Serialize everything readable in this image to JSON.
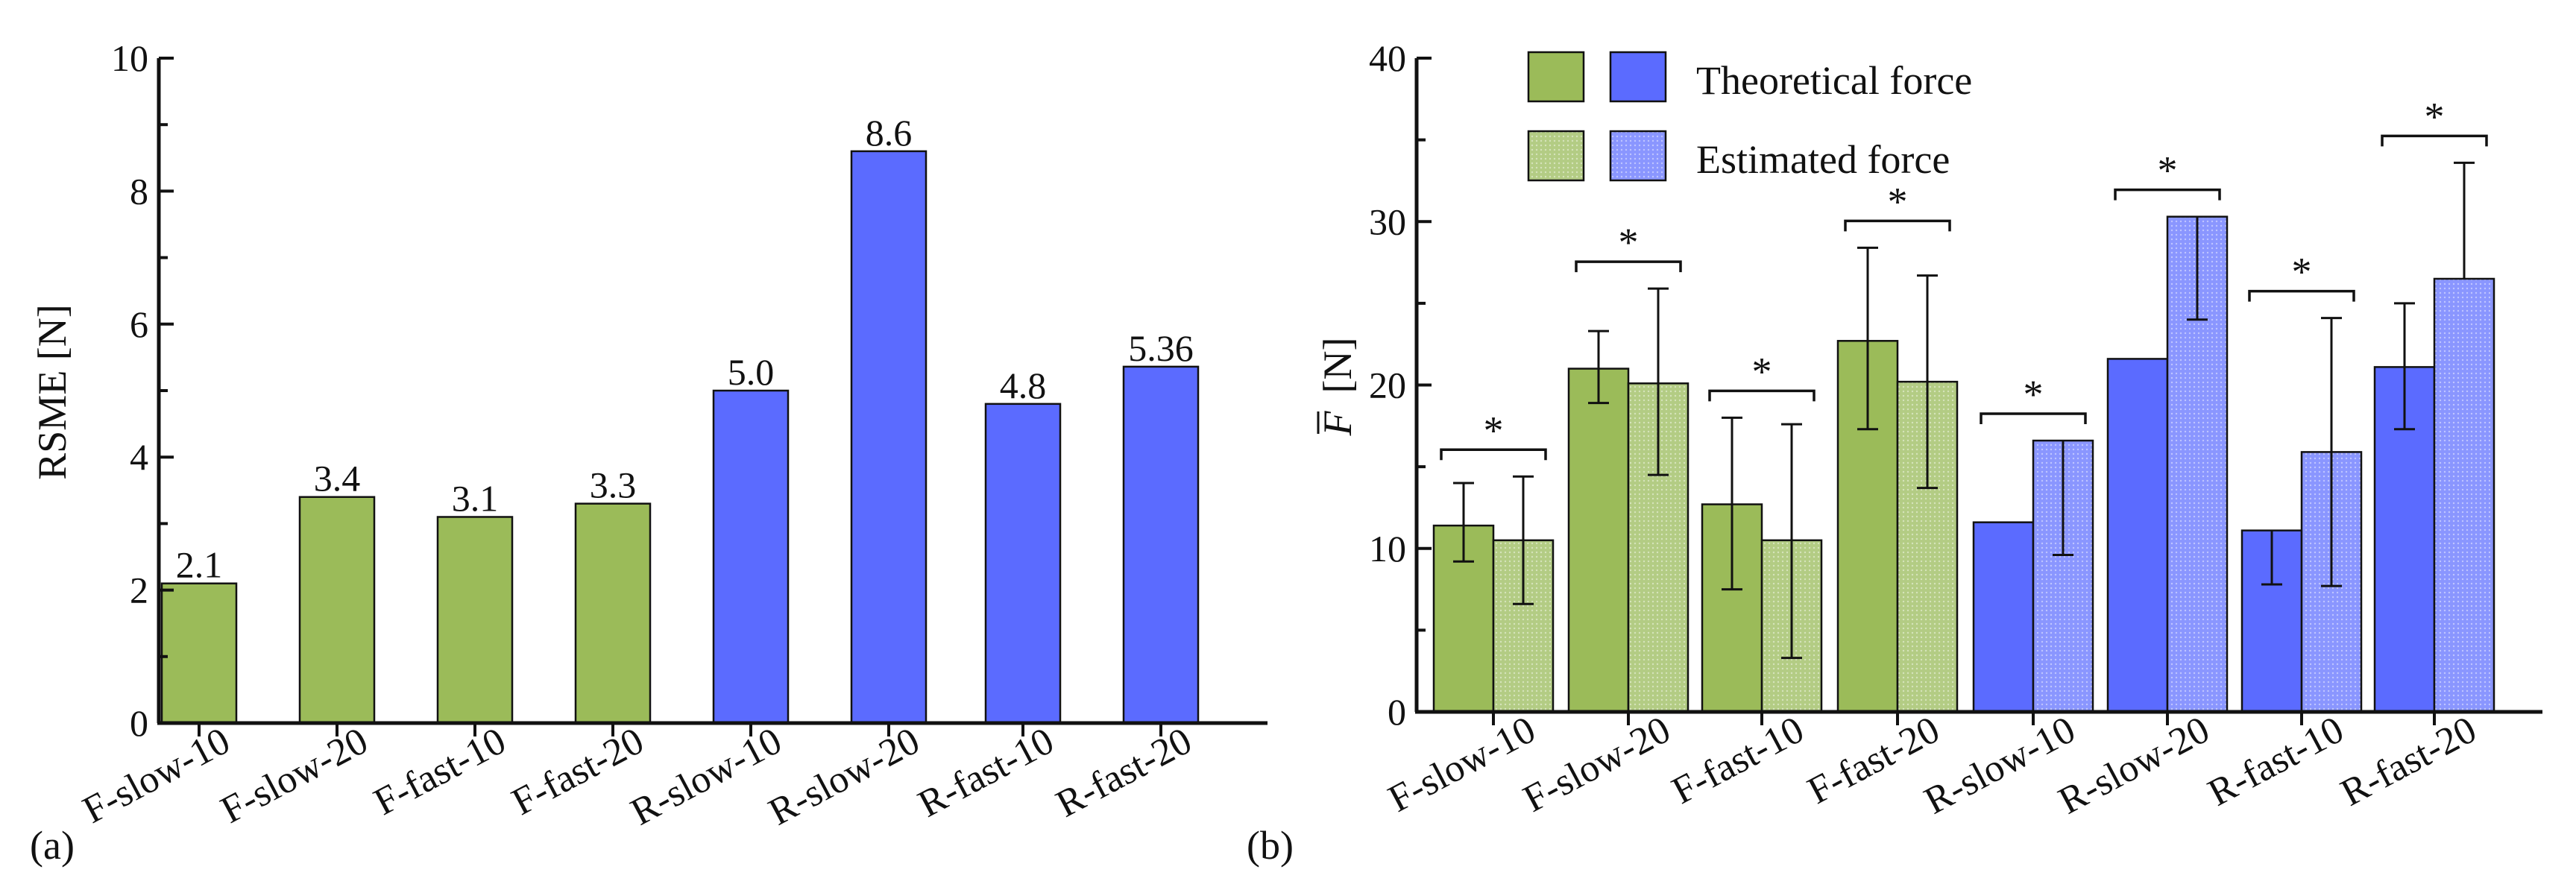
{
  "colors": {
    "green": "#9bbb59",
    "green_light": "#b3cc84",
    "blue": "#5b6bff",
    "blue_light": "#8a96ff",
    "axis": "#111111"
  },
  "chart_data": [
    {
      "id": "a",
      "panel_label": "(a)",
      "type": "bar",
      "ylabel": "RSME [N]",
      "ylim": [
        0,
        10
      ],
      "yticks": [
        "0",
        "2",
        "4",
        "6",
        "8",
        "10"
      ],
      "categories": [
        "F-slow-10",
        "F-slow-20",
        "F-fast-10",
        "F-fast-20",
        "R-slow-10",
        "R-slow-20",
        "R-fast-10",
        "R-fast-20"
      ],
      "values": [
        2.1,
        3.4,
        3.1,
        3.3,
        5.0,
        8.6,
        4.8,
        5.36
      ],
      "value_labels": [
        "2.1",
        "3.4",
        "3.1",
        "3.3",
        "5.0",
        "8.6",
        "4.8",
        "5.36"
      ],
      "bar_colors": [
        "green",
        "green",
        "green",
        "green",
        "blue",
        "blue",
        "blue",
        "blue"
      ]
    },
    {
      "id": "b",
      "panel_label": "(b)",
      "type": "bar",
      "ylabel_symbol": "F",
      "ylabel_unit": "[N]",
      "ylim": [
        0,
        40
      ],
      "yticks": [
        "0",
        "10",
        "20",
        "30",
        "40"
      ],
      "categories": [
        "F-slow-10",
        "F-slow-20",
        "F-fast-10",
        "F-fast-20",
        "R-slow-10",
        "R-slow-20",
        "R-fast-10",
        "R-fast-20"
      ],
      "group_colors": [
        "green",
        "green",
        "green",
        "green",
        "blue",
        "blue",
        "blue",
        "blue"
      ],
      "series": [
        {
          "name": "Theoretical force",
          "values": [
            11.4,
            21.0,
            12.7,
            22.7,
            11.6,
            21.6,
            11.1,
            21.1
          ],
          "err_upper": [
            2.6,
            2.3,
            5.3,
            5.7,
            0,
            0,
            0,
            3.9
          ],
          "err_lower": [
            2.2,
            2.1,
            5.2,
            5.4,
            0,
            0,
            3.3,
            3.8
          ]
        },
        {
          "name": "Estimated force",
          "values": [
            10.5,
            20.1,
            10.5,
            20.2,
            16.6,
            30.3,
            15.9,
            26.5
          ],
          "err_upper": [
            3.9,
            5.8,
            7.1,
            6.5,
            0,
            0,
            8.2,
            7.1
          ],
          "err_lower": [
            3.9,
            5.6,
            7.2,
            6.5,
            7.0,
            6.3,
            8.2,
            0
          ]
        }
      ],
      "significance": [
        "*",
        "*",
        "*",
        "*",
        "*",
        "*",
        "*",
        "*"
      ],
      "legend": {
        "position": "top-center",
        "entries": [
          "Theoretical force",
          "Estimated force"
        ]
      }
    }
  ]
}
